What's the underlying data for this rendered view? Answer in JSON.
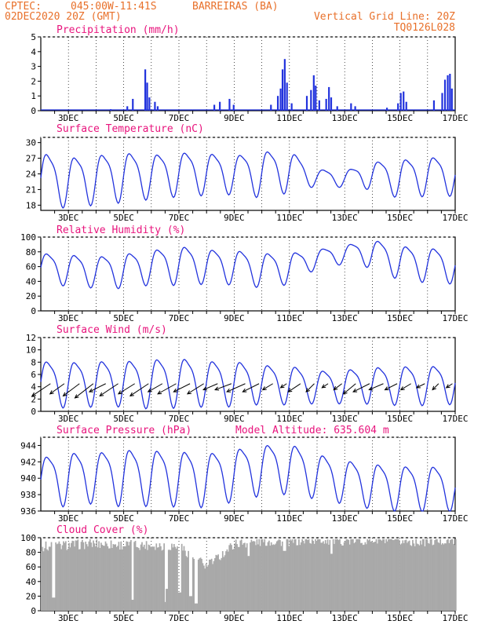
{
  "header": {
    "org": "CPTEC:",
    "coords": "045:00W-11:41S",
    "station": "BARREIRAS (BA)",
    "date": "02DEC2020 20Z (GMT)",
    "grid_note": "Vertical Grid Line: 20Z",
    "code": "TQ0126L028"
  },
  "colors": {
    "header": "#e8702a",
    "title": "#e8147d",
    "line": "#2233dd",
    "cloud": "#a9a9a9"
  },
  "chart_data": [
    {
      "type": "bar",
      "title": "Precipitation (mm/h)",
      "ylim": [
        0,
        5
      ],
      "yticks": [
        0,
        1,
        2,
        3,
        4,
        5
      ],
      "xlabels": [
        "3DEC",
        "5DEC",
        "7DEC",
        "9DEC",
        "11DEC",
        "13DEC",
        "15DEC",
        "17DEC"
      ],
      "events": [
        {
          "day": 4.5,
          "value": 0.1
        },
        {
          "day": 5.1,
          "value": 0.3
        },
        {
          "day": 5.3,
          "value": 0.8
        },
        {
          "day": 5.75,
          "value": 2.8
        },
        {
          "day": 5.82,
          "value": 1.9
        },
        {
          "day": 5.9,
          "value": 0.9
        },
        {
          "day": 6.1,
          "value": 0.6
        },
        {
          "day": 6.2,
          "value": 0.3
        },
        {
          "day": 8.25,
          "value": 0.4
        },
        {
          "day": 8.45,
          "value": 0.6
        },
        {
          "day": 8.8,
          "value": 0.8
        },
        {
          "day": 8.95,
          "value": 0.4
        },
        {
          "day": 10.3,
          "value": 0.4
        },
        {
          "day": 10.55,
          "value": 1.0
        },
        {
          "day": 10.65,
          "value": 1.5
        },
        {
          "day": 10.72,
          "value": 2.8
        },
        {
          "day": 10.8,
          "value": 3.5
        },
        {
          "day": 10.88,
          "value": 1.9
        },
        {
          "day": 11.05,
          "value": 0.5
        },
        {
          "day": 11.6,
          "value": 1.0
        },
        {
          "day": 11.75,
          "value": 1.4
        },
        {
          "day": 11.85,
          "value": 2.4
        },
        {
          "day": 11.92,
          "value": 1.7
        },
        {
          "day": 12.05,
          "value": 0.7
        },
        {
          "day": 12.3,
          "value": 0.8
        },
        {
          "day": 12.4,
          "value": 1.6
        },
        {
          "day": 12.48,
          "value": 0.9
        },
        {
          "day": 12.7,
          "value": 0.3
        },
        {
          "day": 13.2,
          "value": 0.5
        },
        {
          "day": 13.35,
          "value": 0.3
        },
        {
          "day": 14.5,
          "value": 0.2
        },
        {
          "day": 14.9,
          "value": 0.5
        },
        {
          "day": 15.0,
          "value": 1.2
        },
        {
          "day": 15.1,
          "value": 1.3
        },
        {
          "day": 15.2,
          "value": 0.6
        },
        {
          "day": 16.2,
          "value": 0.7
        },
        {
          "day": 16.5,
          "value": 1.2
        },
        {
          "day": 16.6,
          "value": 2.1
        },
        {
          "day": 16.7,
          "value": 2.4
        },
        {
          "day": 16.78,
          "value": 2.5
        },
        {
          "day": 16.85,
          "value": 1.5
        }
      ]
    },
    {
      "type": "line",
      "title": "Surface Temperature (nC)",
      "ylim": [
        17,
        31
      ],
      "yticks": [
        18,
        21,
        24,
        27,
        30
      ],
      "xlabels": [
        "3DEC",
        "5DEC",
        "7DEC",
        "9DEC",
        "11DEC",
        "13DEC",
        "15DEC",
        "17DEC"
      ],
      "mean": [
        23.5,
        23,
        23.5,
        24,
        24,
        24.5,
        24.5,
        24.3,
        24.5,
        25,
        23.5,
        23.2,
        24,
        23.5,
        24,
        24,
        25
      ],
      "amp": [
        5,
        4.5,
        4.5,
        4.5,
        4,
        4,
        3.8,
        3.5,
        4.2,
        3.8,
        1.5,
        1.5,
        2.5,
        3.5,
        3.5,
        3.5,
        3.5
      ]
    },
    {
      "type": "line",
      "title": "Relative Humidity (%)",
      "ylim": [
        0,
        100
      ],
      "yticks": [
        0,
        20,
        40,
        60,
        80,
        100
      ],
      "xlabels": [
        "3DEC",
        "5DEC",
        "7DEC",
        "9DEC",
        "11DEC",
        "13DEC",
        "15DEC",
        "17DEC"
      ],
      "mean": [
        60,
        58,
        55,
        57,
        62,
        65,
        63,
        62,
        58,
        60,
        72,
        78,
        80,
        68,
        65,
        63,
        67
      ],
      "amp": [
        20,
        20,
        20,
        22,
        22,
        25,
        22,
        22,
        22,
        20,
        12,
        12,
        18,
        22,
        22,
        22,
        22
      ]
    },
    {
      "type": "line",
      "title": "Surface Wind (m/s)",
      "ylim": [
        0,
        12
      ],
      "yticks": [
        0,
        2,
        4,
        6,
        8,
        10,
        12
      ],
      "xlabels": [
        "3DEC",
        "5DEC",
        "7DEC",
        "9DEC",
        "11DEC",
        "13DEC",
        "15DEC",
        "17DEC"
      ],
      "mean": [
        5,
        4.8,
        5,
        5,
        5,
        5.2,
        5,
        5,
        4.8,
        4.7,
        4.3,
        4.4,
        4.6,
        4.6,
        4.6,
        4.8,
        4.8
      ],
      "amp": [
        3.5,
        3.5,
        3.5,
        3.5,
        3.8,
        3.8,
        3.5,
        3.5,
        3,
        3,
        2.5,
        2.6,
        2.8,
        3,
        3,
        3,
        3
      ],
      "arrows": [
        {
          "day": 2.35,
          "u": 0.9,
          "v": 0.6
        },
        {
          "day": 2.85,
          "u": 0.7,
          "v": 0.5
        },
        {
          "day": 3.4,
          "u": 0.8,
          "v": 0.6
        },
        {
          "day": 3.9,
          "u": 0.9,
          "v": 0.7
        },
        {
          "day": 4.35,
          "u": 0.8,
          "v": 0.4
        },
        {
          "day": 4.8,
          "u": 0.9,
          "v": 0.6
        },
        {
          "day": 5.4,
          "u": 0.8,
          "v": 0.5
        },
        {
          "day": 5.9,
          "u": 0.9,
          "v": 0.6
        },
        {
          "day": 6.4,
          "u": 0.7,
          "v": 0.4
        },
        {
          "day": 6.9,
          "u": 0.9,
          "v": 0.5
        },
        {
          "day": 7.4,
          "u": 0.8,
          "v": 0.4
        },
        {
          "day": 7.9,
          "u": 0.8,
          "v": 0.5
        },
        {
          "day": 8.4,
          "u": 0.7,
          "v": 0.3
        },
        {
          "day": 8.9,
          "u": 0.8,
          "v": 0.3
        },
        {
          "day": 9.4,
          "u": 0.9,
          "v": 0.4
        },
        {
          "day": 9.9,
          "u": 0.8,
          "v": 0.4
        },
        {
          "day": 10.4,
          "u": 0.5,
          "v": 0.3
        },
        {
          "day": 10.9,
          "u": 0.3,
          "v": 0.2
        },
        {
          "day": 11.4,
          "u": 0.6,
          "v": 0.4
        },
        {
          "day": 11.9,
          "u": 0.4,
          "v": 0.4
        },
        {
          "day": 12.4,
          "u": 0.3,
          "v": 0.2
        },
        {
          "day": 12.9,
          "u": 0.4,
          "v": 0.3
        },
        {
          "day": 13.4,
          "u": 0.6,
          "v": 0.5
        },
        {
          "day": 13.9,
          "u": 0.8,
          "v": 0.4
        },
        {
          "day": 14.4,
          "u": 0.7,
          "v": 0.3
        },
        {
          "day": 14.9,
          "u": 0.6,
          "v": 0.3
        },
        {
          "day": 15.4,
          "u": 0.5,
          "v": 0.3
        },
        {
          "day": 15.9,
          "u": 0.4,
          "v": 0.2
        },
        {
          "day": 16.4,
          "u": 0.3,
          "v": 0.3
        },
        {
          "day": 16.9,
          "u": 0.3,
          "v": 0.2
        }
      ]
    },
    {
      "type": "line",
      "title": "Surface Pressure (hPa)",
      "annotation": "Model Altitude: 635.604 m",
      "ylim": [
        936,
        945
      ],
      "yticks": [
        936,
        938,
        940,
        942,
        944
      ],
      "xlabels": [
        "3DEC",
        "5DEC",
        "7DEC",
        "9DEC",
        "11DEC",
        "13DEC",
        "15DEC",
        "17DEC"
      ],
      "mean": [
        940,
        940.3,
        940.5,
        940.5,
        940.5,
        940.4,
        940.2,
        940.8,
        941.4,
        941.6,
        940.6,
        939.9,
        939.4,
        939.1,
        939.1,
        939,
        938.8
      ],
      "amp": [
        2.8,
        3.1,
        2.9,
        3.3,
        3.2,
        3.2,
        3.1,
        3,
        2.9,
        2.9,
        2.6,
        2.5,
        2.6,
        2.6,
        2.6,
        2.5,
        2.5
      ]
    },
    {
      "type": "area",
      "title": "Cloud Cover (%)",
      "ylim": [
        0,
        100
      ],
      "yticks": [
        0,
        20,
        40,
        60,
        80,
        100
      ],
      "xlabels": [
        "3DEC",
        "5DEC",
        "7DEC",
        "9DEC",
        "11DEC",
        "13DEC",
        "15DEC",
        "17DEC"
      ],
      "level": [
        88,
        90,
        92,
        90,
        90,
        88,
        60,
        92,
        95,
        95,
        97,
        96,
        97,
        95,
        95,
        97,
        96
      ],
      "dips": [
        {
          "day": 2.45,
          "value": 18
        },
        {
          "day": 5.3,
          "value": 15
        },
        {
          "day": 6.5,
          "value": 12
        },
        {
          "day": 6.55,
          "value": 30
        },
        {
          "day": 7.0,
          "value": 25
        },
        {
          "day": 7.4,
          "value": 20
        },
        {
          "day": 7.6,
          "value": 10
        },
        {
          "day": 8.1,
          "value": 70
        },
        {
          "day": 9.5,
          "value": 75
        },
        {
          "day": 10.8,
          "value": 82
        },
        {
          "day": 12.5,
          "value": 78
        }
      ]
    }
  ]
}
